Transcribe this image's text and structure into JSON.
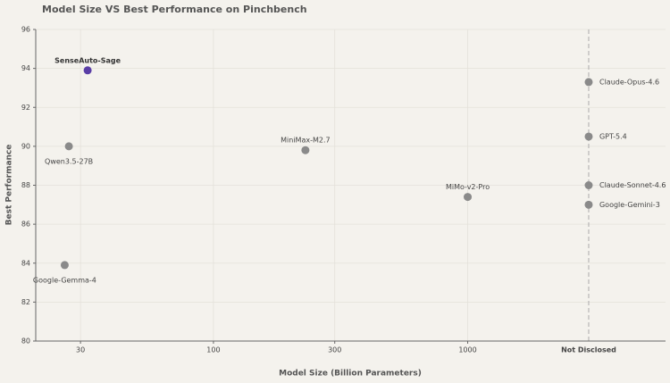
{
  "chart_data": {
    "type": "scatter",
    "title": "Model Size VS Best Performance on Pinchbench",
    "x_label": "Model Size (Billion Parameters)",
    "y_label": "Best Performance",
    "x_scale": "log",
    "xlim": [
      20,
      6000
    ],
    "xticks": [
      30,
      100,
      300,
      1000
    ],
    "x_missing_label": "Not Disclosed",
    "ylim": [
      80,
      96
    ],
    "yticks": [
      80,
      82,
      84,
      86,
      88,
      90,
      92,
      94,
      96
    ],
    "grid": true,
    "points": [
      {
        "label": "SenseAuto-Sage",
        "x": 32,
        "y": 93.9,
        "color": "#5a3ea6",
        "label_pos": "above",
        "highlight": true
      },
      {
        "label": "Qwen3.5-27B",
        "x": 27,
        "y": 90.0,
        "color": "#8a8a8a",
        "label_pos": "below",
        "highlight": false
      },
      {
        "label": "Google-Gemma-4",
        "x": 26,
        "y": 83.9,
        "color": "#8a8a8a",
        "label_pos": "below",
        "highlight": false
      },
      {
        "label": "MiniMax-M2.7",
        "x": 230,
        "y": 89.8,
        "color": "#8a8a8a",
        "label_pos": "above",
        "highlight": false
      },
      {
        "label": "MiMo-v2-Pro",
        "x": 1000,
        "y": 87.4,
        "color": "#8a8a8a",
        "label_pos": "above",
        "highlight": false
      },
      {
        "label": "Claude-Opus-4.6",
        "x": null,
        "y": 93.3,
        "color": "#8a8a8a",
        "label_pos": "right",
        "highlight": false
      },
      {
        "label": "GPT-5.4",
        "x": null,
        "y": 90.5,
        "color": "#8a8a8a",
        "label_pos": "right",
        "highlight": false
      },
      {
        "label": "Claude-Sonnet-4.6",
        "x": null,
        "y": 88.0,
        "color": "#8a8a8a",
        "label_pos": "right",
        "highlight": false
      },
      {
        "label": "Google-Gemini-3",
        "x": null,
        "y": 87.0,
        "color": "#8a8a8a",
        "label_pos": "right",
        "highlight": false
      }
    ]
  }
}
